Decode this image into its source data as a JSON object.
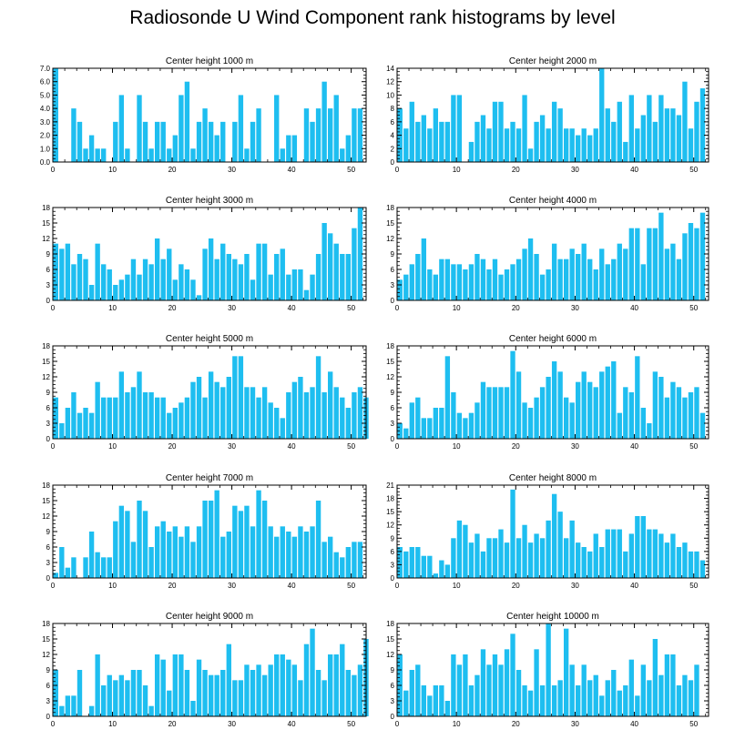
{
  "figure": {
    "title": "Radiosonde U Wind Component rank histograms by level"
  },
  "style": {
    "bar_color": "#1EBEF0",
    "axis_color": "#000000",
    "background": "#ffffff"
  },
  "chart_data": [
    {
      "type": "bar",
      "title": "Center height 1000 m",
      "ylim": [
        0,
        7
      ],
      "yticks": [
        "0.0",
        "1.0",
        "2.0",
        "3.0",
        "4.0",
        "5.0",
        "6.0",
        "7.0"
      ],
      "xticks": [
        "0",
        "10",
        "20",
        "30",
        "40",
        "50"
      ],
      "values": [
        7,
        0,
        0,
        4,
        3,
        1,
        2,
        1,
        1,
        0,
        3,
        5,
        1,
        0,
        5,
        3,
        1,
        3,
        3,
        1,
        2,
        5,
        6,
        1,
        3,
        4,
        3,
        2,
        3,
        0,
        3,
        5,
        1,
        3,
        4,
        0,
        0,
        5,
        1,
        2,
        2,
        0,
        4,
        3,
        4,
        6,
        4,
        5,
        1,
        2,
        4,
        4
      ]
    },
    {
      "type": "bar",
      "title": "Center height 2000 m",
      "ylim": [
        0,
        14
      ],
      "yticks": [
        "0",
        "2",
        "4",
        "6",
        "8",
        "10",
        "12",
        "14"
      ],
      "xticks": [
        "0",
        "10",
        "20",
        "30",
        "40",
        "50"
      ],
      "values": [
        8,
        5,
        9,
        6,
        7,
        5,
        8,
        6,
        6,
        10,
        10,
        0,
        3,
        6,
        7,
        5,
        9,
        9,
        5,
        6,
        5,
        10,
        2,
        6,
        7,
        5,
        9,
        8,
        5,
        5,
        4,
        5,
        4,
        5,
        14,
        8,
        6,
        9,
        3,
        10,
        5,
        7,
        10,
        6,
        10,
        8,
        8,
        7,
        12,
        5,
        9,
        11
      ]
    },
    {
      "type": "bar",
      "title": "Center height 3000 m",
      "ylim": [
        0,
        18
      ],
      "yticks": [
        "0",
        "3",
        "6",
        "9",
        "12",
        "15",
        "18"
      ],
      "xticks": [
        "0",
        "10",
        "20",
        "30",
        "40",
        "50"
      ],
      "values": [
        11,
        10,
        11,
        7,
        9,
        8,
        3,
        11,
        7,
        6,
        3,
        4,
        5,
        8,
        5,
        8,
        7,
        12,
        8,
        10,
        4,
        7,
        6,
        4,
        1,
        10,
        12,
        8,
        11,
        9,
        8,
        7,
        9,
        4,
        11,
        11,
        5,
        9,
        10,
        5,
        6,
        6,
        2,
        5,
        9,
        15,
        13,
        11,
        9,
        9,
        14,
        18
      ]
    },
    {
      "type": "bar",
      "title": "Center height 4000 m",
      "ylim": [
        0,
        18
      ],
      "yticks": [
        "0",
        "3",
        "6",
        "9",
        "12",
        "15",
        "18"
      ],
      "xticks": [
        "0",
        "10",
        "20",
        "30",
        "40",
        "50"
      ],
      "values": [
        4,
        5,
        7,
        9,
        12,
        6,
        5,
        8,
        8,
        7,
        7,
        6,
        7,
        9,
        8,
        6,
        8,
        5,
        6,
        7,
        8,
        10,
        12,
        9,
        5,
        6,
        11,
        8,
        8,
        10,
        9,
        11,
        8,
        6,
        10,
        7,
        8,
        11,
        10,
        14,
        14,
        7,
        14,
        14,
        17,
        10,
        11,
        8,
        13,
        15,
        14,
        17
      ]
    },
    {
      "type": "bar",
      "title": "Center height 5000 m",
      "ylim": [
        0,
        18
      ],
      "yticks": [
        "0",
        "3",
        "6",
        "9",
        "12",
        "15",
        "18"
      ],
      "xticks": [
        "0",
        "10",
        "20",
        "30",
        "40",
        "50"
      ],
      "values": [
        8,
        3,
        6,
        9,
        5,
        6,
        5,
        11,
        8,
        8,
        8,
        13,
        9,
        10,
        13,
        9,
        9,
        8,
        8,
        5,
        6,
        7,
        8,
        11,
        12,
        8,
        13,
        11,
        10,
        12,
        16,
        16,
        10,
        10,
        8,
        10,
        7,
        6,
        4,
        9,
        11,
        12,
        9,
        10,
        16,
        9,
        13,
        10,
        8,
        6,
        9,
        10,
        8
      ]
    },
    {
      "type": "bar",
      "title": "Center height 6000 m",
      "ylim": [
        0,
        18
      ],
      "yticks": [
        "0",
        "3",
        "6",
        "9",
        "12",
        "15",
        "18"
      ],
      "xticks": [
        "0",
        "10",
        "20",
        "30",
        "40",
        "50"
      ],
      "values": [
        3,
        2,
        7,
        8,
        4,
        4,
        6,
        6,
        16,
        9,
        5,
        4,
        5,
        7,
        11,
        10,
        10,
        10,
        10,
        17,
        13,
        7,
        6,
        8,
        10,
        12,
        15,
        13,
        8,
        7,
        11,
        13,
        11,
        10,
        13,
        14,
        15,
        5,
        10,
        9,
        16,
        6,
        3,
        13,
        12,
        8,
        11,
        10,
        8,
        9,
        10,
        5
      ]
    },
    {
      "type": "bar",
      "title": "Center height 7000 m",
      "ylim": [
        0,
        18
      ],
      "yticks": [
        "0",
        "3",
        "6",
        "9",
        "12",
        "15",
        "18"
      ],
      "xticks": [
        "0",
        "10",
        "20",
        "30",
        "40",
        "50"
      ],
      "values": [
        1,
        6,
        2,
        4,
        0,
        4,
        9,
        5,
        4,
        4,
        11,
        14,
        13,
        7,
        15,
        13,
        6,
        10,
        11,
        9,
        10,
        8,
        10,
        7,
        10,
        15,
        15,
        17,
        8,
        9,
        14,
        13,
        14,
        10,
        17,
        15,
        10,
        8,
        10,
        9,
        8,
        10,
        9,
        10,
        15,
        7,
        8,
        5,
        4,
        6,
        7,
        7
      ]
    },
    {
      "type": "bar",
      "title": "Center height 8000 m",
      "ylim": [
        0,
        21
      ],
      "yticks": [
        "0",
        "3",
        "6",
        "9",
        "12",
        "15",
        "18",
        "21"
      ],
      "xticks": [
        "0",
        "10",
        "20",
        "30",
        "40",
        "50"
      ],
      "values": [
        7,
        6,
        7,
        7,
        5,
        5,
        1,
        4,
        3,
        9,
        13,
        12,
        8,
        10,
        6,
        9,
        9,
        11,
        8,
        20,
        9,
        12,
        8,
        10,
        9,
        13,
        19,
        15,
        9,
        13,
        8,
        7,
        6,
        10,
        7,
        11,
        11,
        11,
        6,
        10,
        14,
        14,
        11,
        11,
        10,
        8,
        10,
        7,
        8,
        6,
        6,
        4
      ]
    },
    {
      "type": "bar",
      "title": "Center height 9000 m",
      "ylim": [
        0,
        18
      ],
      "yticks": [
        "0",
        "3",
        "6",
        "9",
        "12",
        "15",
        "18"
      ],
      "xticks": [
        "0",
        "10",
        "20",
        "30",
        "40",
        "50"
      ],
      "values": [
        9,
        2,
        4,
        4,
        9,
        0,
        2,
        12,
        6,
        8,
        7,
        8,
        7,
        9,
        9,
        6,
        2,
        12,
        11,
        5,
        12,
        12,
        9,
        3,
        11,
        9,
        8,
        8,
        9,
        14,
        7,
        7,
        10,
        9,
        10,
        8,
        10,
        12,
        12,
        11,
        10,
        7,
        14,
        17,
        9,
        7,
        12,
        12,
        14,
        9,
        8,
        10,
        15
      ]
    },
    {
      "type": "bar",
      "title": "Center height 10000 m",
      "ylim": [
        0,
        18
      ],
      "yticks": [
        "0",
        "3",
        "6",
        "9",
        "12",
        "15",
        "18"
      ],
      "xticks": [
        "0",
        "10",
        "20",
        "30",
        "40",
        "50"
      ],
      "values": [
        12,
        5,
        9,
        10,
        6,
        4,
        6,
        6,
        3,
        12,
        10,
        12,
        6,
        8,
        13,
        10,
        12,
        10,
        13,
        16,
        9,
        6,
        5,
        13,
        6,
        18,
        6,
        7,
        17,
        10,
        6,
        10,
        7,
        8,
        4,
        7,
        9,
        5,
        6,
        11,
        4,
        10,
        7,
        15,
        8,
        12,
        12,
        6,
        8,
        7,
        10
      ]
    }
  ]
}
